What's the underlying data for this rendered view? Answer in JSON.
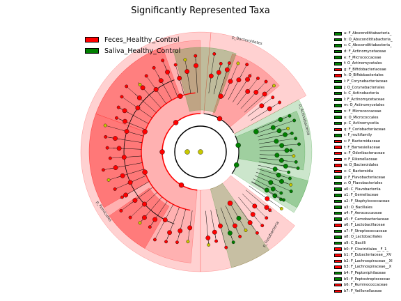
{
  "colors": {
    "feces": "#ff0000",
    "saliva": "#008000",
    "neutral": "#c8c800"
  },
  "chart_data": {
    "type": "cladogram",
    "title": "Significantly Represented Taxa",
    "legend": [
      {
        "name": "Feces_Healthy_Control",
        "color": "#ff0000"
      },
      {
        "name": "Saliva_Healthy_Control",
        "color": "#008000"
      }
    ],
    "clade_labels": [
      "p_Bacteroidetes",
      "p_Actinobacteria",
      "p_Fusobacteria",
      "p_Firmicutes"
    ],
    "taxa_key": [
      {
        "label": "a: F_Abscondititabacteria_",
        "group": "saliva"
      },
      {
        "label": "b: O_Abscondititabacteria_",
        "group": "saliva"
      },
      {
        "label": "c: C_Abscondititabacteria_",
        "group": "saliva"
      },
      {
        "label": "d: F_Actinomycetaceae",
        "group": "saliva"
      },
      {
        "label": "e: F_Micrococcaceae",
        "group": "saliva"
      },
      {
        "label": "f: O_Actinomycetales",
        "group": "saliva"
      },
      {
        "label": "g: F_Bifidobacteriaceae",
        "group": "feces"
      },
      {
        "label": "h: O_Bifidobacteriales",
        "group": "feces"
      },
      {
        "label": "i: F_Corynebacteriaceae",
        "group": "saliva"
      },
      {
        "label": "j: O_Corynebacteriales",
        "group": "saliva"
      },
      {
        "label": "k: C_Actinobacteria",
        "group": "saliva"
      },
      {
        "label": "l: F_Actinomycetaceae",
        "group": "saliva"
      },
      {
        "label": "m: O_Actinomycetales",
        "group": "saliva"
      },
      {
        "label": "n: F_Micrococcaceae",
        "group": "saliva"
      },
      {
        "label": "o: O_Micrococcales",
        "group": "saliva"
      },
      {
        "label": "p: C_Actinomycetia",
        "group": "saliva"
      },
      {
        "label": "q: F_Coriobacteriaceae",
        "group": "feces"
      },
      {
        "label": "r: F_multifamily",
        "group": "saliva"
      },
      {
        "label": "s: F_Bacteroidaceae",
        "group": "feces"
      },
      {
        "label": "t: F_Barnesiellaceae",
        "group": "feces"
      },
      {
        "label": "u: F_Odoribacteraceae",
        "group": "feces"
      },
      {
        "label": "v: F_Rikenellaceae",
        "group": "feces"
      },
      {
        "label": "w: O_Bacteroidales",
        "group": "feces"
      },
      {
        "label": "x: C_Bacteroidia",
        "group": "feces"
      },
      {
        "label": "y: F_Flavobacteriaceae",
        "group": "saliva"
      },
      {
        "label": "z: O_Flavobacteriales",
        "group": "saliva"
      },
      {
        "label": "a0: C_Flavobacteriia",
        "group": "saliva"
      },
      {
        "label": "a1: F_Gemellaceae",
        "group": "saliva"
      },
      {
        "label": "a2: F_Staphylococcaceae",
        "group": "saliva"
      },
      {
        "label": "a3: O_Bacillales",
        "group": "saliva"
      },
      {
        "label": "a4: F_Aerococcaceae",
        "group": "saliva"
      },
      {
        "label": "a5: F_Carnobacteriaceae",
        "group": "saliva"
      },
      {
        "label": "a6: F_Lactobacillaceae",
        "group": "feces"
      },
      {
        "label": "a7: F_Streptococcaceae",
        "group": "saliva"
      },
      {
        "label": "a8: O_Lactobacillales",
        "group": "saliva"
      },
      {
        "label": "a9: C_Bacilli",
        "group": "saliva"
      },
      {
        "label": "b0: F_Clostridiales__F_1_",
        "group": "feces"
      },
      {
        "label": "b1: F_Eubacteriaceae__XV",
        "group": "feces"
      },
      {
        "label": "b2: F_Lachnospiraceae__XI",
        "group": "feces"
      },
      {
        "label": "b3: F_Lachnospiraceae__X",
        "group": "feces"
      },
      {
        "label": "b4: F_Peptoniphilaceae",
        "group": "saliva"
      },
      {
        "label": "b5: F_Peptostreptococcac",
        "group": "saliva"
      },
      {
        "label": "b6: F_Ruminococcaceae",
        "group": "feces"
      },
      {
        "label": "b7: F_Veillonellaceae",
        "group": "feces"
      }
    ]
  }
}
